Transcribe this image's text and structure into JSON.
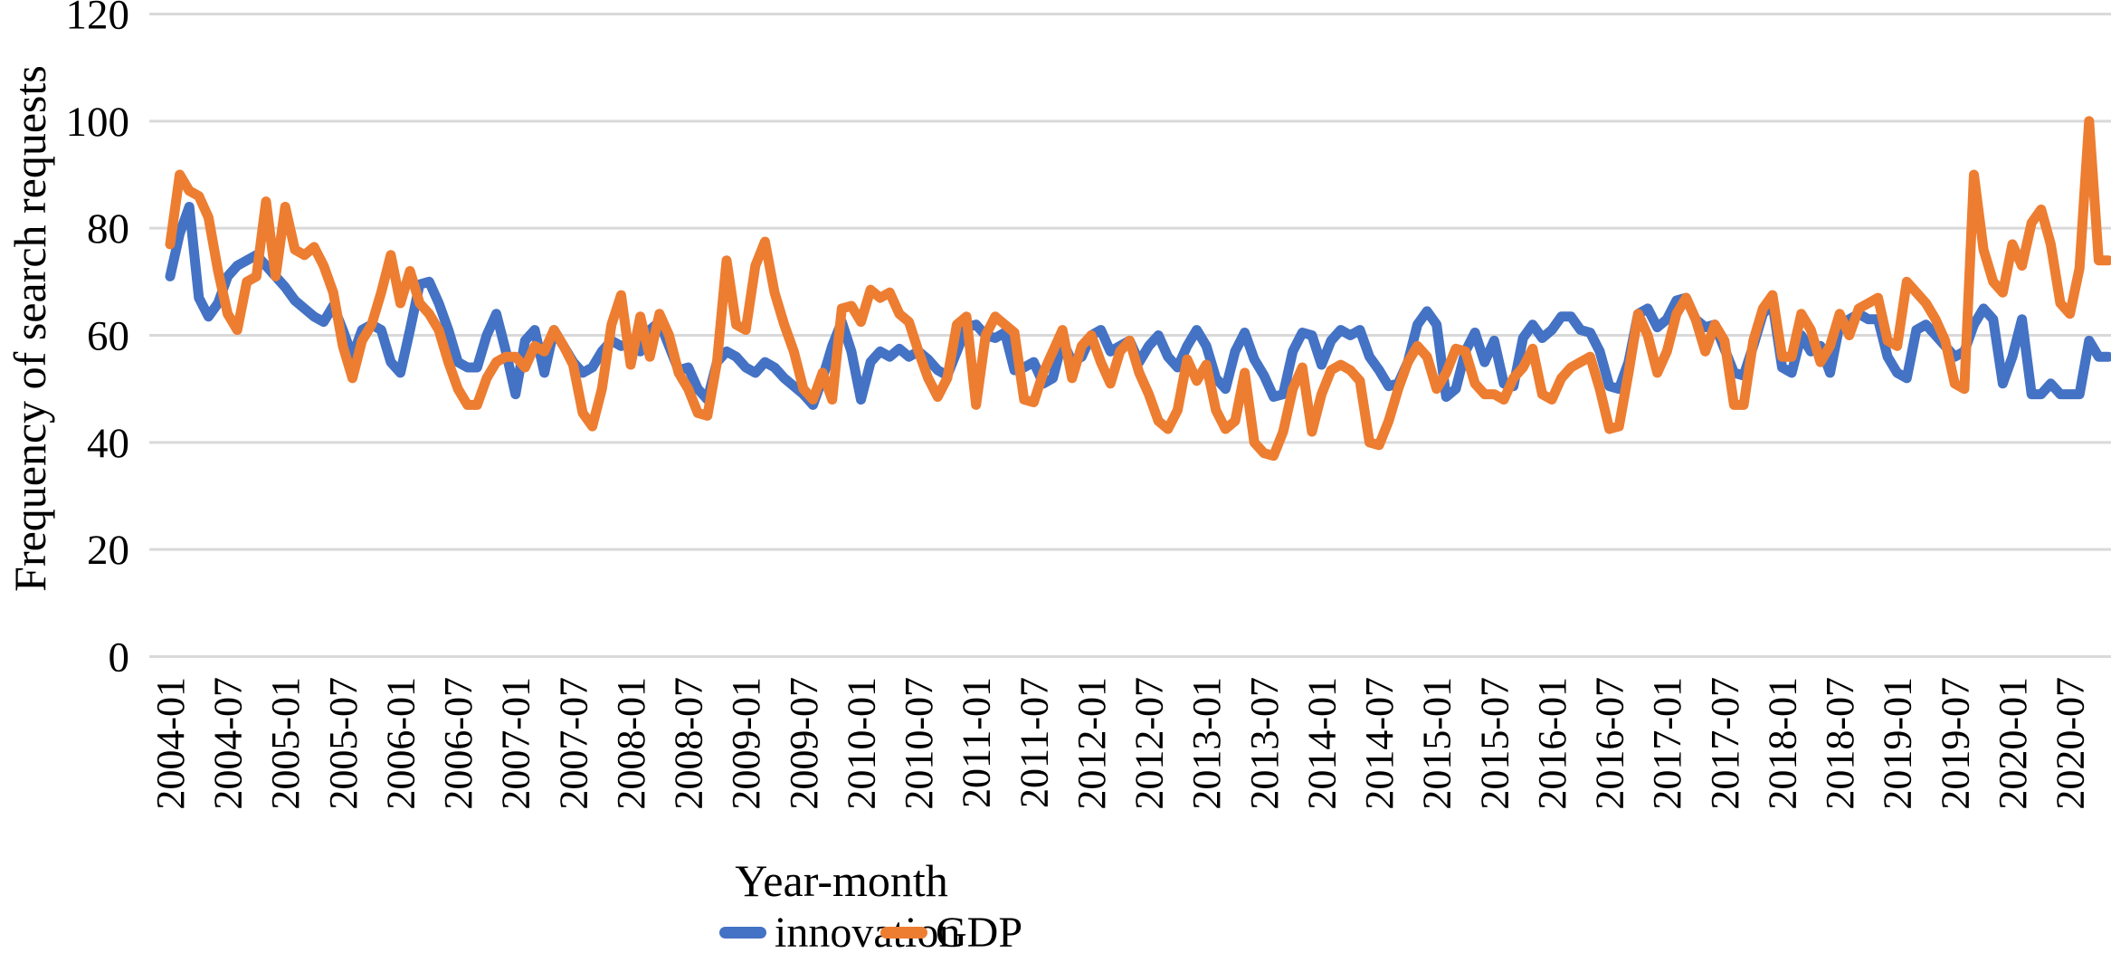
{
  "chart_data": {
    "type": "line",
    "title": "",
    "xlabel": "Year-month",
    "ylabel": "Frequency of search requests",
    "ylim": [
      0,
      120
    ],
    "yticks": [
      0,
      20,
      40,
      60,
      80,
      100,
      120
    ],
    "grid": "horizontal",
    "grid_color": "#D9D9D9",
    "legend_position": "bottom",
    "x_start": "2004-01",
    "x_end": "2020-11",
    "x_frequency": "monthly",
    "n_points": 203,
    "x_tick_labels": [
      "2004-01",
      "2004-07",
      "2005-01",
      "2005-07",
      "2006-01",
      "2006-07",
      "2007-01",
      "2007-07",
      "2008-01",
      "2008-07",
      "2009-01",
      "2009-07",
      "2010-01",
      "2010-07",
      "2011-01",
      "2011-07",
      "2012-01",
      "2012-07",
      "2013-01",
      "2013-07",
      "2014-01",
      "2014-07",
      "2015-01",
      "2015-07",
      "2016-01",
      "2016-07",
      "2017-01",
      "2017-07",
      "2018-01",
      "2018-07",
      "2019-01",
      "2019-07",
      "2020-01",
      "2020-07"
    ],
    "x_tick_every_n_points": 6,
    "series": [
      {
        "name": "innovation",
        "color": "#4472C4",
        "values": [
          71,
          79,
          84,
          67,
          63.5,
          66,
          71,
          73,
          74,
          75,
          73,
          71,
          69,
          66.5,
          65,
          63.5,
          62.5,
          65.5,
          61,
          56,
          61,
          62,
          61,
          55,
          53,
          61,
          69.5,
          70,
          66,
          61,
          55,
          54,
          54,
          60,
          64,
          57,
          49,
          59,
          61,
          53,
          61,
          58,
          55,
          53,
          54,
          57,
          59,
          58,
          58.5,
          57,
          61,
          62.5,
          58,
          53.5,
          54,
          50,
          48,
          55,
          57,
          56,
          54,
          53,
          55,
          54,
          52,
          50.5,
          49,
          47,
          52,
          58,
          62.5,
          57,
          48,
          55,
          57,
          56,
          57.5,
          56,
          57,
          55.5,
          53.5,
          52.5,
          57,
          61.5,
          62,
          60,
          59.5,
          60.5,
          53.5,
          54,
          55,
          51,
          52,
          59,
          55,
          56,
          60,
          61,
          57,
          58,
          59,
          55,
          58,
          60,
          56,
          54,
          58,
          61,
          58,
          52,
          50,
          57,
          60.5,
          55.5,
          52.5,
          48.5,
          49,
          57,
          60.5,
          60,
          54.5,
          59,
          61,
          60,
          61,
          56,
          53.5,
          50.5,
          51,
          55,
          62,
          64.5,
          62,
          48.5,
          50,
          57,
          60.5,
          55,
          59,
          51,
          50.5,
          59.5,
          62,
          59.5,
          61,
          63.5,
          63.5,
          61,
          60.5,
          57,
          50.5,
          50,
          55,
          64,
          65,
          61.5,
          63,
          66.5,
          67,
          63,
          61.5,
          62,
          57.5,
          53,
          52.5,
          58,
          64,
          66,
          54,
          53,
          60,
          57,
          58,
          53,
          62,
          63,
          64,
          63,
          63,
          56,
          53,
          52,
          61,
          62,
          60,
          58,
          56,
          57,
          62,
          65,
          63,
          51,
          56,
          63,
          49,
          49,
          51,
          49,
          49,
          49,
          59,
          56,
          56
        ]
      },
      {
        "name": "GDP",
        "color": "#ED7D31",
        "values": [
          77,
          90,
          87,
          86,
          82,
          72,
          64,
          61,
          70,
          71,
          85,
          71,
          84,
          76,
          75,
          76.5,
          73,
          68,
          58,
          52,
          59,
          62,
          68,
          75,
          66,
          72,
          66,
          64,
          61,
          55,
          50,
          47,
          47,
          52,
          55,
          56,
          56,
          54,
          58,
          57,
          61,
          58,
          54.5,
          45.5,
          43,
          50,
          62,
          67.5,
          54.5,
          63.5,
          56,
          64,
          60,
          53,
          50,
          45.5,
          45,
          55,
          74,
          62,
          61,
          73,
          77.5,
          68,
          62,
          57,
          50,
          48,
          53,
          48,
          65,
          65.5,
          62.5,
          68.5,
          67,
          68,
          64,
          62.5,
          57,
          52,
          48.5,
          52,
          62,
          63.5,
          47,
          60,
          63.5,
          62,
          60.5,
          48,
          47.5,
          53,
          57,
          61,
          52,
          58,
          60,
          55,
          51,
          57,
          59,
          53,
          49,
          44,
          42.5,
          46,
          55.5,
          51.5,
          54.5,
          46,
          42.5,
          44,
          53,
          40,
          38,
          37.5,
          42,
          50,
          54,
          42,
          49,
          53.5,
          54.5,
          53.5,
          51.5,
          40,
          39.5,
          44,
          50,
          55,
          58,
          56,
          50,
          53,
          57.5,
          57,
          51,
          49,
          49,
          48,
          52,
          54,
          57.5,
          49,
          48,
          52,
          54,
          55,
          56,
          50,
          42.5,
          43,
          53,
          64,
          60,
          53,
          57,
          64,
          67,
          63,
          57,
          62,
          59,
          47,
          47,
          59,
          65,
          67.5,
          56,
          56,
          64,
          61,
          55,
          58,
          64,
          60,
          65,
          66,
          67,
          59,
          58,
          70,
          68,
          66,
          63,
          59,
          51,
          50,
          90,
          76,
          70,
          68,
          77,
          73,
          81,
          83.5,
          77,
          66,
          64,
          72.5,
          100,
          74,
          74
        ]
      }
    ]
  }
}
